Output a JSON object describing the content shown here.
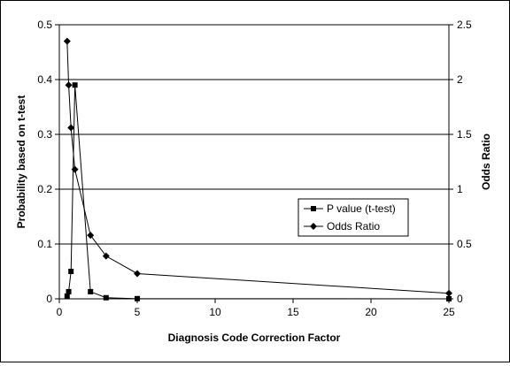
{
  "chart_data": {
    "type": "line",
    "title": "",
    "xlabel": "Diagnosis Code Correction Factor",
    "ylabel_left": "Probability based on t-test",
    "ylabel_right": "Odds Ratio",
    "xlim": [
      0,
      25
    ],
    "ylim_left": [
      0,
      0.5
    ],
    "ylim_right": [
      0,
      2.5
    ],
    "x_ticks": [
      "0",
      "5",
      "10",
      "15",
      "20",
      "25"
    ],
    "y_left_ticks": [
      "0",
      "0.1",
      "0.2",
      "0.3",
      "0.4",
      "0.5"
    ],
    "y_right_ticks": [
      "0",
      "0.5",
      "1",
      "1.5",
      "2",
      "2.5"
    ],
    "grid": "horizontal",
    "legend_position": "center-right",
    "series": [
      {
        "name": "P value (t-test)",
        "axis": "left",
        "marker": "square",
        "x": [
          0.5,
          0.6,
          0.75,
          1,
          2,
          3,
          5,
          25
        ],
        "y": [
          0.005,
          0.013,
          0.05,
          0.39,
          0.013,
          0.002,
          0.0003,
          0.0
        ]
      },
      {
        "name": "Odds Ratio",
        "axis": "right",
        "marker": "diamond",
        "x": [
          0.5,
          0.6,
          0.75,
          1,
          2,
          3,
          5,
          25
        ],
        "y": [
          2.35,
          1.95,
          1.56,
          1.18,
          0.58,
          0.39,
          0.23,
          0.05
        ]
      }
    ]
  }
}
